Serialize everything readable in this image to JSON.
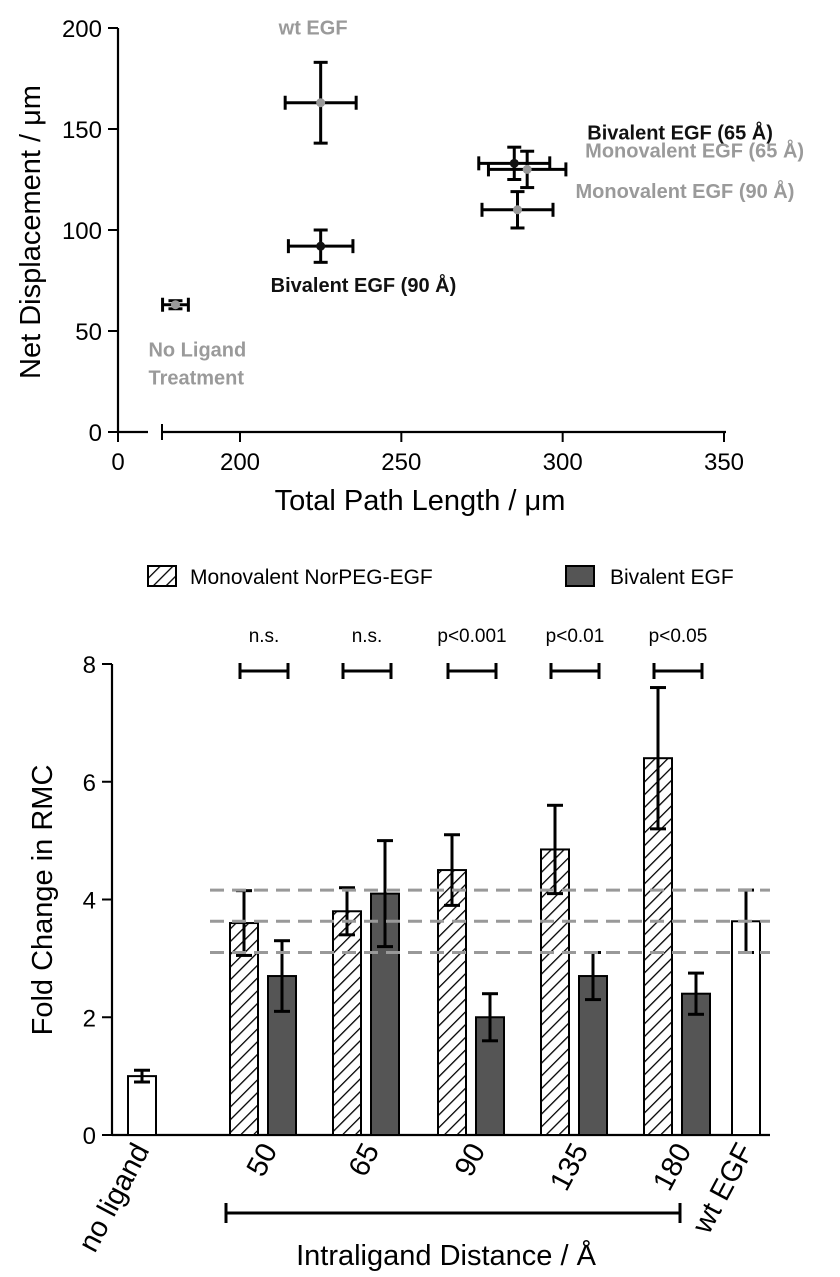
{
  "chart_data": [
    {
      "type": "scatter",
      "xlabel": "Total Path Length / μm",
      "ylabel": "Net Displacement / μm",
      "xlim": [
        0,
        350
      ],
      "ylim": [
        0,
        200
      ],
      "axis_break": "x",
      "x_ticks": [
        "0",
        "200",
        "250",
        "300",
        "350"
      ],
      "y_ticks": [
        "0",
        "50",
        "100",
        "150",
        "200"
      ],
      "points": [
        {
          "label": "No Ligand Treatment",
          "label_lines": [
            "No Ligand",
            "Treatment"
          ],
          "x": 180,
          "y": 63,
          "xerr": 4,
          "yerr": 2,
          "color": "#999999",
          "label_pos": "below"
        },
        {
          "label": "wt EGF",
          "x": 225,
          "y": 163,
          "xerr": 11,
          "yerr": 20,
          "color": "#999999",
          "label_pos": "above"
        },
        {
          "label": "Bivalent EGF (90 Å)",
          "x": 225,
          "y": 92,
          "xerr": 10,
          "yerr": 8,
          "color": "#111111",
          "label_pos": "below"
        },
        {
          "label": "Bivalent EGF (65 Å)",
          "x": 285,
          "y": 133,
          "xerr": 11,
          "yerr": 8,
          "color": "#111111",
          "label_pos": "above-right"
        },
        {
          "label": "Monovalent EGF (65 Å)",
          "x": 289,
          "y": 130,
          "xerr": 12,
          "yerr": 9,
          "color": "#999999",
          "label_pos": "right"
        },
        {
          "label": "Monovalent EGF (90 Å)",
          "x": 286,
          "y": 110,
          "xerr": 11,
          "yerr": 9,
          "color": "#999999",
          "label_pos": "right"
        }
      ]
    },
    {
      "type": "bar",
      "ylabel": "Fold Change in RMC",
      "xlabel": "Intraligand Distance / Å",
      "ylim": [
        0,
        8
      ],
      "y_ticks": [
        "0",
        "2",
        "4",
        "6",
        "8"
      ],
      "categories": [
        "no ligand",
        "50",
        "65",
        "90",
        "135",
        "180",
        "wt EGF"
      ],
      "legend_position": "top",
      "series": [
        {
          "name": "Monovalent NorPEG-EGF",
          "pattern": "hatched",
          "values": [
            null,
            3.6,
            3.8,
            4.5,
            4.85,
            6.4,
            null
          ],
          "errors": [
            null,
            0.55,
            0.4,
            0.6,
            0.75,
            1.2,
            null
          ]
        },
        {
          "name": "Bivalent EGF",
          "color": "#555555",
          "values": [
            null,
            2.7,
            4.1,
            2.0,
            2.7,
            2.4,
            null
          ],
          "errors": [
            null,
            0.6,
            0.9,
            0.4,
            0.4,
            0.35,
            null
          ]
        }
      ],
      "controls": [
        {
          "category": "no ligand",
          "value": 1.0,
          "error": 0.1,
          "color": "#ffffff"
        },
        {
          "category": "wt EGF",
          "value": 3.63,
          "error": 0.53,
          "color": "#ffffff"
        }
      ],
      "reference_lines": [
        4.16,
        3.63,
        3.1
      ],
      "significance": [
        "n.s.",
        "n.s.",
        "p<0.001",
        "p<0.01",
        "p<0.05"
      ],
      "grid": false
    }
  ]
}
